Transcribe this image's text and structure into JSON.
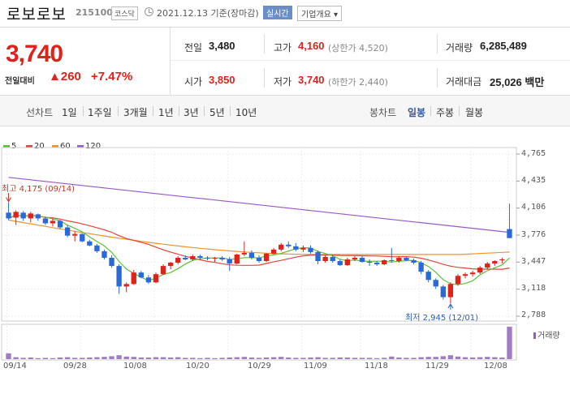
{
  "header": {
    "title": "로보로보",
    "code": "215100",
    "market": "코스닥",
    "date": "2021.12.13 기준(장마감)",
    "realtime": "실시간",
    "company_info": "기업개요 ▾"
  },
  "quote": {
    "price": "3,740",
    "change_label": "전일대비",
    "change_value": "▲260",
    "change_pct": "+7.47%",
    "prev_close_label": "전일",
    "prev_close": "3,480",
    "high_label": "고가",
    "high": "4,160",
    "upper_limit": "(상한가 4,520)",
    "volume_label": "거래량",
    "volume": "6,285,489",
    "open_label": "시가",
    "open": "3,850",
    "low_label": "저가",
    "low": "3,740",
    "lower_limit": "(하한가 2,440)",
    "amount_label": "거래대금",
    "amount": "25,026 백만"
  },
  "tabs": {
    "line_chart": "선차트",
    "periods": [
      "1일",
      "1주일",
      "3개월",
      "1년",
      "3년",
      "5년",
      "10년"
    ],
    "candle_chart": "봉차트",
    "candle_periods": [
      "일봉",
      "주봉",
      "월봉"
    ]
  },
  "chart_data": {
    "type": "candlestick",
    "legend": [
      "5",
      "20",
      "60",
      "120"
    ],
    "colors": {
      "ma5": "#5fbf3a",
      "ma20": "#e0453a",
      "ma60": "#f0922b",
      "ma120": "#9b59c6",
      "up": "#e0221c",
      "down": "#2a6ad8"
    },
    "y_ticks": [
      "4,765",
      "4,435",
      "4,106",
      "3,776",
      "3,447",
      "3,118",
      "2,788"
    ],
    "ylim": [
      2788,
      4765
    ],
    "x_ticks": [
      "09/14",
      "09/28",
      "10/08",
      "10/20",
      "10/29",
      "11/09",
      "11/18",
      "11/29",
      "12/08"
    ],
    "annotations": {
      "high": "최고 4,175 (09/14)",
      "low": "최저 2,945 (12/01)"
    },
    "volume_label": "거래량",
    "candles": [
      [
        4050,
        4175,
        3960,
        3980
      ],
      [
        3990,
        4080,
        3900,
        4060
      ],
      [
        4050,
        4070,
        3950,
        3980
      ],
      [
        3980,
        4060,
        3930,
        4040
      ],
      [
        4030,
        4040,
        3950,
        3980
      ],
      [
        3980,
        4000,
        3900,
        3920
      ],
      [
        3920,
        3980,
        3880,
        3950
      ],
      [
        3950,
        3960,
        3850,
        3870
      ],
      [
        3870,
        3900,
        3750,
        3770
      ],
      [
        3770,
        3820,
        3700,
        3790
      ],
      [
        3790,
        3800,
        3690,
        3700
      ],
      [
        3700,
        3720,
        3640,
        3650
      ],
      [
        3650,
        3670,
        3560,
        3580
      ],
      [
        3580,
        3600,
        3480,
        3500
      ],
      [
        3500,
        3530,
        3380,
        3400
      ],
      [
        3400,
        3420,
        3060,
        3150
      ],
      [
        3150,
        3200,
        3080,
        3180
      ],
      [
        3180,
        3350,
        3170,
        3320
      ],
      [
        3320,
        3340,
        3250,
        3260
      ],
      [
        3260,
        3290,
        3180,
        3200
      ],
      [
        3200,
        3320,
        3190,
        3300
      ],
      [
        3300,
        3420,
        3290,
        3400
      ],
      [
        3400,
        3450,
        3360,
        3440
      ],
      [
        3440,
        3520,
        3420,
        3500
      ],
      [
        3500,
        3530,
        3470,
        3480
      ],
      [
        3480,
        3540,
        3460,
        3520
      ],
      [
        3520,
        3540,
        3480,
        3500
      ],
      [
        3500,
        3520,
        3470,
        3490
      ],
      [
        3490,
        3510,
        3450,
        3500
      ],
      [
        3500,
        3520,
        3460,
        3480
      ],
      [
        3480,
        3510,
        3340,
        3430
      ],
      [
        3430,
        3550,
        3420,
        3540
      ],
      [
        3540,
        3700,
        3520,
        3560
      ],
      [
        3560,
        3590,
        3480,
        3500
      ],
      [
        3500,
        3530,
        3440,
        3460
      ],
      [
        3460,
        3560,
        3450,
        3550
      ],
      [
        3550,
        3620,
        3540,
        3600
      ],
      [
        3600,
        3680,
        3580,
        3660
      ],
      [
        3660,
        3700,
        3620,
        3640
      ],
      [
        3640,
        3680,
        3580,
        3600
      ],
      [
        3600,
        3650,
        3570,
        3620
      ],
      [
        3620,
        3650,
        3550,
        3570
      ],
      [
        3570,
        3590,
        3420,
        3460
      ],
      [
        3460,
        3530,
        3440,
        3510
      ],
      [
        3510,
        3530,
        3440,
        3460
      ],
      [
        3460,
        3480,
        3400,
        3410
      ],
      [
        3410,
        3500,
        3400,
        3480
      ],
      [
        3480,
        3520,
        3460,
        3500
      ],
      [
        3500,
        3520,
        3440,
        3450
      ],
      [
        3450,
        3480,
        3400,
        3440
      ],
      [
        3440,
        3460,
        3400,
        3420
      ],
      [
        3420,
        3480,
        3410,
        3470
      ],
      [
        3470,
        3620,
        3440,
        3460
      ],
      [
        3460,
        3520,
        3440,
        3500
      ],
      [
        3500,
        3510,
        3460,
        3470
      ],
      [
        3470,
        3490,
        3420,
        3440
      ],
      [
        3440,
        3460,
        3300,
        3330
      ],
      [
        3330,
        3350,
        3200,
        3230
      ],
      [
        3230,
        3250,
        3120,
        3150
      ],
      [
        3150,
        3170,
        2990,
        3020
      ],
      [
        3020,
        3200,
        2945,
        3180
      ],
      [
        3180,
        3300,
        3160,
        3280
      ],
      [
        3280,
        3320,
        3250,
        3300
      ],
      [
        3300,
        3340,
        3270,
        3320
      ],
      [
        3320,
        3400,
        3300,
        3380
      ],
      [
        3380,
        3450,
        3360,
        3430
      ],
      [
        3430,
        3470,
        3400,
        3460
      ],
      [
        3480,
        3500,
        3430,
        3480
      ],
      [
        3850,
        4160,
        3740,
        3740
      ]
    ],
    "volumes": [
      0.18,
      0.06,
      0.04,
      0.05,
      0.03,
      0.04,
      0.03,
      0.05,
      0.06,
      0.04,
      0.04,
      0.05,
      0.06,
      0.07,
      0.09,
      0.12,
      0.08,
      0.07,
      0.05,
      0.05,
      0.06,
      0.06,
      0.05,
      0.06,
      0.04,
      0.04,
      0.03,
      0.04,
      0.03,
      0.04,
      0.05,
      0.06,
      0.07,
      0.05,
      0.04,
      0.05,
      0.06,
      0.07,
      0.05,
      0.04,
      0.04,
      0.05,
      0.06,
      0.04,
      0.04,
      0.05,
      0.05,
      0.04,
      0.04,
      0.04,
      0.03,
      0.04,
      0.08,
      0.05,
      0.04,
      0.04,
      0.06,
      0.07,
      0.07,
      0.09,
      0.12,
      0.08,
      0.06,
      0.05,
      0.06,
      0.07,
      0.06,
      0.05,
      1.0
    ]
  }
}
